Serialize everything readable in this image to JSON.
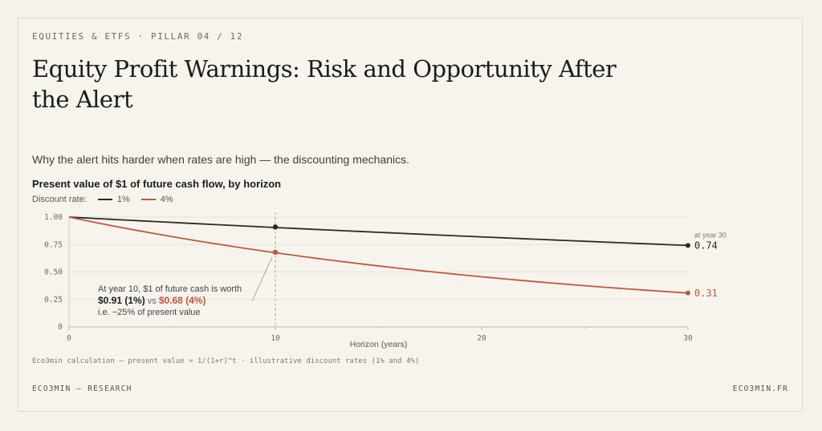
{
  "kicker": "EQUITIES & ETFS · PILLAR 04 / 12",
  "title": "Equity Profit Warnings: Risk and Opportunity After the Alert",
  "subtitle": "Why the alert hits harder when rates are high — the discounting mechanics.",
  "source": "Eco3min calculation — present value = 1/(1+r)^t · illustrative discount rates (1% and 4%)",
  "footer": {
    "left": "ECO3MIN — RESEARCH",
    "right": "ECO3MIN.FR"
  },
  "colors": {
    "low_rate": "#2a2a28",
    "high_rate": "#c0583a",
    "grid": "#e4e0d6"
  },
  "chart_data": {
    "type": "line",
    "title": "Present value of $1 of future cash flow, by horizon",
    "legend_label": "Discount rate:",
    "legend_placement": "top-left",
    "xlabel": "Horizon (years)",
    "ylabel": "",
    "xlim": [
      0,
      30
    ],
    "ylim": [
      0,
      1
    ],
    "x_ticks": [
      "0",
      "10",
      "20",
      "30"
    ],
    "y_ticks": [
      "0",
      "0.25",
      "0.50",
      "0.75",
      "1.00"
    ],
    "grid": true,
    "series": [
      {
        "name": "1%",
        "rate": 0.01,
        "color": "#2a2a28",
        "end_label": "0.74"
      },
      {
        "name": "4%",
        "rate": 0.04,
        "color": "#c0583a",
        "end_label": "0.31"
      }
    ],
    "highlight_x": 10,
    "highlight_points": [
      {
        "series": "1%",
        "x": 10,
        "y": 0.91
      },
      {
        "series": "4%",
        "x": 10,
        "y": 0.68
      }
    ],
    "end_note": "at year 30",
    "annotation": {
      "line1": "At year 10, $1 of future cash is worth",
      "v1": "$0.91 (1%)",
      "vs": " vs ",
      "v2": "$0.68 (4%)",
      "line3": "i.e. −25% of present value"
    }
  }
}
